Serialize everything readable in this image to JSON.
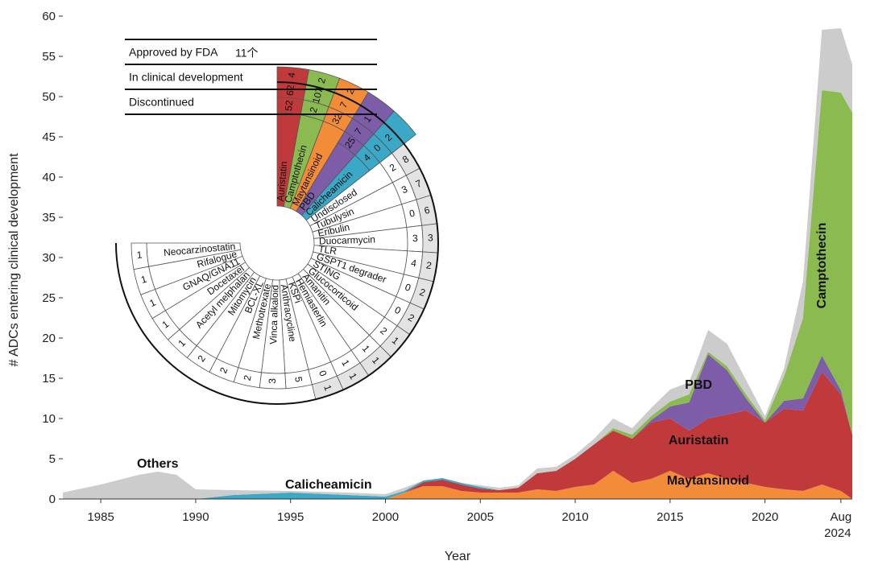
{
  "chart_data": {
    "type": "area",
    "ylabel": "# ADCs entering clinical development",
    "xlabel": "Year",
    "ylim": [
      0,
      60
    ],
    "xlim": [
      1983,
      2024.6
    ],
    "y_ticks": [
      0,
      5,
      10,
      15,
      20,
      25,
      30,
      35,
      40,
      45,
      50,
      55,
      60
    ],
    "x_ticks": [
      {
        "value": 1985,
        "label": "1985"
      },
      {
        "value": 1990,
        "label": "1990"
      },
      {
        "value": 1995,
        "label": "1995"
      },
      {
        "value": 2000,
        "label": "2000"
      },
      {
        "value": 2005,
        "label": "2005"
      },
      {
        "value": 2010,
        "label": "2010"
      },
      {
        "value": 2015,
        "label": "2015"
      },
      {
        "value": 2020,
        "label": "2020"
      }
    ],
    "x_end_label": [
      "Aug",
      "2024"
    ],
    "x": [
      1983,
      1985,
      1987,
      1988,
      1989,
      1990,
      1992,
      1995,
      1998,
      2000,
      2001,
      2002,
      2003,
      2004,
      2005,
      2006,
      2007,
      2008,
      2009,
      2010,
      2011,
      2012,
      2013,
      2014,
      2015,
      2016,
      2017,
      2018,
      2019,
      2020,
      2021,
      2022,
      2023,
      2024,
      2024.6
    ],
    "series": [
      {
        "name": "Maytansinoid",
        "color": "#f28c38",
        "values": [
          0,
          0,
          0,
          0,
          0,
          0,
          0,
          0,
          0,
          0,
          0.8,
          1.6,
          1.6,
          1.0,
          0.8,
          0.8,
          0.8,
          1.2,
          1.0,
          1.5,
          1.8,
          3.5,
          2.0,
          2.5,
          3.5,
          2.5,
          3.2,
          2.5,
          2.0,
          1.5,
          1.2,
          1.0,
          1.8,
          1.0,
          0
        ]
      },
      {
        "name": "Auristatin",
        "color": "#c0393b",
        "values": [
          0,
          0,
          0,
          0,
          0,
          0,
          0,
          0,
          0,
          0,
          0,
          0.5,
          0.8,
          0.8,
          0.5,
          0.3,
          0.6,
          2.0,
          2.5,
          3.5,
          5.0,
          5.0,
          5.5,
          7.0,
          6.5,
          6.0,
          6.8,
          8.0,
          9.0,
          8.0,
          10.0,
          10.0,
          14.0,
          12.0,
          8.0
        ]
      },
      {
        "name": "PBD",
        "color": "#7d5ca8",
        "values": [
          0,
          0,
          0,
          0,
          0,
          0,
          0,
          0,
          0,
          0,
          0,
          0,
          0,
          0,
          0,
          0,
          0,
          0,
          0,
          0,
          0,
          0,
          0,
          0.3,
          1.5,
          3.5,
          8.0,
          5.5,
          1.5,
          0,
          1.0,
          1.5,
          2.0,
          0.5,
          0
        ]
      },
      {
        "name": "Camptothecin",
        "color": "#8bbb50",
        "values": [
          0,
          0,
          0,
          0,
          0,
          0,
          0,
          0,
          0,
          0,
          0,
          0,
          0,
          0,
          0,
          0,
          0,
          0,
          0,
          0,
          0,
          0.3,
          0.5,
          0.5,
          0.6,
          1.0,
          0.3,
          0.5,
          0.5,
          0.3,
          3.0,
          10.0,
          33.0,
          37.0,
          40.0
        ]
      },
      {
        "name": "Calicheamicin",
        "color": "#3aa8c6",
        "values": [
          0,
          0,
          0,
          0,
          0,
          0,
          0.5,
          0.8,
          0.5,
          0.3,
          0.2,
          0.2,
          0.2,
          0.2,
          0.2,
          0,
          0,
          0,
          0,
          0,
          0,
          0,
          0,
          0,
          0,
          0,
          0,
          0,
          0,
          0,
          0,
          0,
          0,
          0,
          0
        ]
      },
      {
        "name": "Others",
        "color": "#cccccc",
        "values": [
          0.8,
          1.8,
          3.0,
          3.4,
          3.0,
          1.2,
          0.6,
          0.2,
          0.3,
          0.3,
          0.4,
          0,
          0,
          0,
          0.2,
          0.3,
          0.3,
          0.6,
          0.5,
          0.5,
          0.7,
          1.2,
          0.8,
          1.0,
          1.5,
          1.5,
          2.7,
          2.8,
          1.8,
          0.5,
          1.0,
          4.5,
          7.5,
          8.0,
          6.0
        ]
      }
    ],
    "area_labels": [
      {
        "text": "Others",
        "x": 1988.0,
        "y": 3.9
      },
      {
        "text": "Calicheamicin",
        "x": 1997.0,
        "y": 1.3
      },
      {
        "text": "PBD",
        "x": 2016.5,
        "y": 13.7
      },
      {
        "text": "Auristatin",
        "x": 2016.5,
        "y": 6.8
      },
      {
        "text": "Maytansinoid",
        "x": 2017.0,
        "y": 1.8
      },
      {
        "text": "Camptothecin",
        "x": 2023.2,
        "y": 29,
        "vertical": true
      }
    ],
    "fan": {
      "row_labels": [
        "Approved by FDA",
        "In clinical development",
        "Discontinued"
      ],
      "annotation": "11个",
      "wedges": [
        {
          "name": "Auristatin",
          "color": "#c0393b",
          "approved": "4",
          "clinical": "62",
          "discontinued": "52"
        },
        {
          "name": "Camptothecin",
          "color": "#8bbb50",
          "approved": "2",
          "clinical": "107",
          "discontinued": "2"
        },
        {
          "name": "Maytansinoid",
          "color": "#f28c38",
          "approved": "2",
          "clinical": "7",
          "discontinued": "32"
        },
        {
          "name": "PBD",
          "color": "#7d5ca8",
          "approved": "",
          "clinical": "1",
          "discontinued": "7",
          "inner": "25"
        },
        {
          "name": "Calicheamicin",
          "color": "#3aa8c6",
          "approved": "",
          "clinical": "2",
          "discontinued": "0",
          "inner": "4"
        },
        {
          "name": "Undisclosed",
          "color": "",
          "clinical": "8",
          "discontinued": "2"
        },
        {
          "name": "Tubulysin",
          "color": "",
          "clinical": "7",
          "discontinued": "3"
        },
        {
          "name": "Eribulin",
          "color": "",
          "clinical": "6",
          "discontinued": "0"
        },
        {
          "name": "Duocarmycin",
          "color": "",
          "clinical": "3",
          "discontinued": "3"
        },
        {
          "name": "TLR",
          "color": "",
          "clinical": "2",
          "discontinued": "4"
        },
        {
          "name": "GSPT1 degrader",
          "color": "",
          "clinical": "2",
          "discontinued": "0"
        },
        {
          "name": "STING",
          "color": "",
          "clinical": "2",
          "discontinued": "0"
        },
        {
          "name": "Glucocorticoid",
          "color": "",
          "clinical": "1",
          "discontinued": "2"
        },
        {
          "name": "Amanitin",
          "color": "",
          "clinical": "1",
          "discontinued": "1"
        },
        {
          "name": "Hemiasterlin",
          "color": "",
          "clinical": "1",
          "discontinued": "1"
        },
        {
          "name": "KSPi",
          "color": "",
          "clinical": "1",
          "discontinued": "0"
        },
        {
          "name": "Anthracycline",
          "color": "",
          "clinical": "",
          "discontinued": "5"
        },
        {
          "name": "Vinca alkaloid",
          "color": "",
          "clinical": "",
          "discontinued": "3"
        },
        {
          "name": "Methotrexate",
          "color": "",
          "clinical": "",
          "discontinued": "2"
        },
        {
          "name": "BCL-XL",
          "color": "",
          "clinical": "",
          "discontinued": "2"
        },
        {
          "name": "Mitomycin",
          "color": "",
          "clinical": "",
          "discontinued": "2"
        },
        {
          "name": "Acetyl melphalan",
          "color": "",
          "clinical": "",
          "discontinued": "1"
        },
        {
          "name": "Docetaxel",
          "color": "",
          "clinical": "",
          "discontinued": "1"
        },
        {
          "name": "GNAQ/GNA11",
          "color": "",
          "clinical": "",
          "discontinued": "1"
        },
        {
          "name": "Rifalogue",
          "color": "",
          "clinical": "",
          "discontinued": "1"
        },
        {
          "name": "Neocarzinostatin",
          "color": "",
          "clinical": "",
          "discontinued": "1"
        }
      ]
    }
  }
}
